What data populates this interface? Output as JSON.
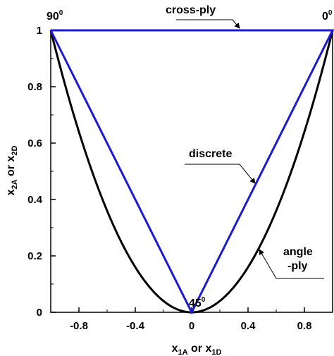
{
  "chart_data": {
    "type": "line",
    "title": "",
    "xlabel": {
      "base1": "x",
      "sub1": "1A",
      "mid": " or ",
      "base2": "x",
      "sub2": "1D"
    },
    "ylabel": {
      "base1": "x",
      "sub1": "2A",
      "mid": " or ",
      "base2": "x",
      "sub2": "2D"
    },
    "xlim": [
      -1,
      1
    ],
    "ylim": [
      0,
      1
    ],
    "xticks": [
      -0.8,
      -0.4,
      0,
      0.4,
      0.8
    ],
    "xtick_labels": [
      "-0.8",
      "-0.4",
      "0",
      "0.4",
      "0.8"
    ],
    "yticks": [
      0,
      0.2,
      0.4,
      0.6,
      0.8,
      1
    ],
    "ytick_labels": [
      "0",
      "0.2",
      "0.4",
      "0.6",
      "0.8",
      "1"
    ],
    "grid": false,
    "series": [
      {
        "label_key": "angle",
        "color": "#000000",
        "x": [
          -1,
          -0.9,
          -0.8,
          -0.7,
          -0.6,
          -0.5,
          -0.4,
          -0.3,
          -0.2,
          -0.1,
          0,
          0.1,
          0.2,
          0.3,
          0.4,
          0.5,
          0.6,
          0.7,
          0.8,
          0.9,
          1
        ],
        "y": [
          1,
          0.81,
          0.64,
          0.49,
          0.36,
          0.25,
          0.16,
          0.09,
          0.04,
          0.01,
          0,
          0.01,
          0.04,
          0.09,
          0.16,
          0.25,
          0.36,
          0.49,
          0.64,
          0.81,
          1
        ]
      },
      {
        "label_key": "discrete",
        "color": "#1a1ad6",
        "x": [
          -1,
          0,
          1,
          -1
        ],
        "y": [
          1,
          0,
          1,
          1
        ]
      }
    ],
    "annotations": {
      "cross_ply": {
        "text": "cross-ply"
      },
      "discrete": {
        "text": "discrete"
      },
      "angle_line1": {
        "text": "angle"
      },
      "angle_line2": {
        "text": "-ply"
      },
      "deg90": {
        "base": "90",
        "sup": "0"
      },
      "deg0": {
        "base": "0",
        "sup": "0"
      },
      "deg45": {
        "base": "45",
        "sup": "0"
      }
    }
  }
}
